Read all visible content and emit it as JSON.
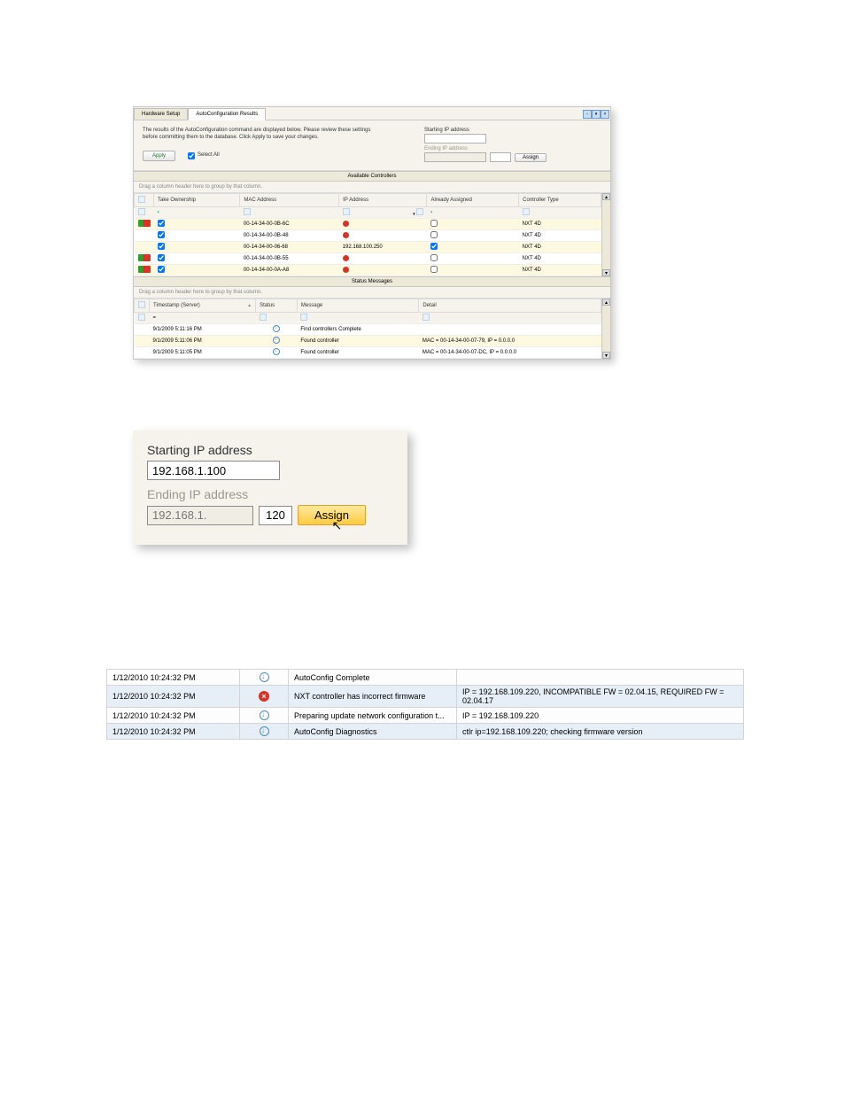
{
  "window": {
    "tabs": [
      "Hardware Setup",
      "AutoConfiguration Results"
    ],
    "active_tab": 1,
    "description": "The results of the AutoConfiguration command are displayed below.  Please review these settings before committing them to the database.    Click Apply to save your changes.",
    "apply_label": "Apply",
    "select_all_label": "Select All",
    "select_all_checked": true,
    "starting_ip_label": "Starting IP address",
    "ending_ip_label": "Ending IP address",
    "assign_label": "Assign",
    "available_title": "Available Controllers",
    "group_hint": "Drag a column header here to group by that column.",
    "columns": [
      "Take Ownership",
      "MAC Address",
      "IP Address",
      "Already Assigned",
      "Controller Type"
    ],
    "rows": [
      {
        "badge": "red",
        "own": true,
        "mac": "00-14-34-00-0B-6C",
        "ip_icon": "red",
        "ip": "",
        "assigned": false,
        "type": "NXT 4D"
      },
      {
        "badge": "",
        "own": true,
        "mac": "00-14-34-00-0B-48",
        "ip_icon": "red",
        "ip": "",
        "assigned": false,
        "type": "NXT 4D"
      },
      {
        "badge": "",
        "own": true,
        "mac": "00-14-34-00-06-68",
        "ip_icon": "",
        "ip": "192.168.100.250",
        "assigned": true,
        "type": "NXT 4D"
      },
      {
        "badge": "red",
        "own": true,
        "mac": "00-14-34-00-0B-55",
        "ip_icon": "red",
        "ip": "",
        "assigned": false,
        "type": "NXT 4D"
      },
      {
        "badge": "red",
        "own": true,
        "mac": "00-14-34-00-0A-A8",
        "ip_icon": "red",
        "ip": "",
        "assigned": false,
        "type": "NXT 4D"
      }
    ],
    "status_title": "Status Messages",
    "status_columns": [
      "Timestamp (Server)",
      "Status",
      "Message",
      "Detail"
    ],
    "status_rows": [
      {
        "ts": "9/1/2009 5:11:16 PM",
        "icon": "info",
        "msg": "Find controllers Complete",
        "detail": ""
      },
      {
        "ts": "9/1/2009 5:11:06 PM",
        "icon": "info",
        "msg": "Found controller",
        "detail": "MAC = 00-14-34-00-07-79, IP = 0.0.0.0"
      },
      {
        "ts": "9/1/2009 5:11:05 PM",
        "icon": "info",
        "msg": "Found controller",
        "detail": "MAC = 00-14-34-00-07-DC, IP = 0.0.0.0"
      }
    ]
  },
  "ip_panel": {
    "starting_label": "Starting IP address",
    "starting_value": "192.168.1.100",
    "ending_label": "Ending IP address",
    "ending_value": "192.168.1.",
    "ending_octet": "120",
    "assign_label": "Assign"
  },
  "status_grid": {
    "rows": [
      {
        "ts": "1/12/2010 10:24:32 PM",
        "icon": "info",
        "msg": "AutoConfig Complete",
        "detail": ""
      },
      {
        "ts": "1/12/2010 10:24:32 PM",
        "icon": "error",
        "msg": "NXT controller has incorrect firmware",
        "detail": "IP = 192.168.109.220, INCOMPATIBLE FW = 02.04.15, REQUIRED FW = 02.04.17"
      },
      {
        "ts": "1/12/2010 10:24:32 PM",
        "icon": "info",
        "msg": "Preparing update network configuration t...",
        "detail": "IP = 192.168.109.220"
      },
      {
        "ts": "1/12/2010 10:24:32 PM",
        "icon": "info",
        "msg": "AutoConfig Diagnostics",
        "detail": "ctlr ip=192.168.109.220; checking firmware version"
      }
    ]
  },
  "style": {
    "colors": {
      "panel_bg": "#f5f3ec",
      "border": "#c8c8c8",
      "alt_row": "#fdf8e0",
      "shade_row": "#e6eef7",
      "status_red": "#d93226",
      "status_green": "#2ea02e",
      "info_blue": "#4a8cc7",
      "assign_orange_top": "#ffe9a0",
      "assign_orange_bot": "#ffcb3f",
      "assign_border": "#e0a030",
      "text_disabled": "#9a998c"
    },
    "autoconfig_window_width": 540,
    "ip_panel_width": 310,
    "status_grid_width": 720,
    "font_family": "Tahoma, Arial, sans-serif"
  }
}
